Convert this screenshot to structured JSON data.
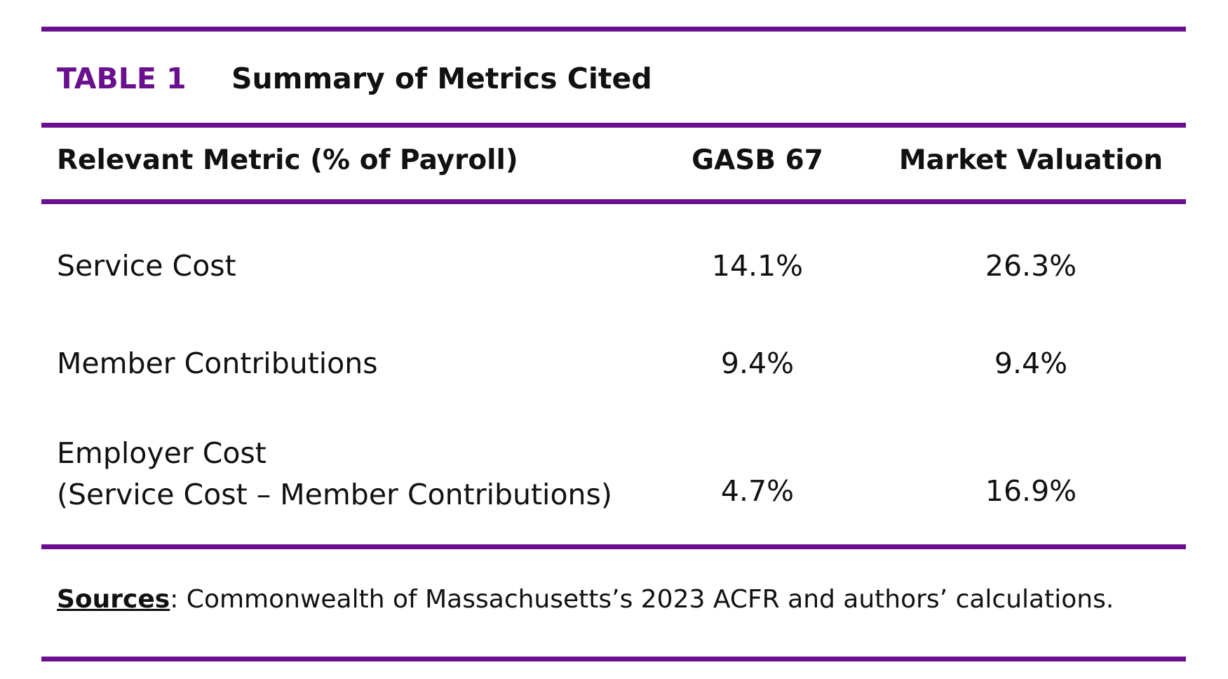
{
  "colors": {
    "accent": "#6a0f8e",
    "text": "#111111",
    "background": "#ffffff"
  },
  "title": {
    "label": "TABLE 1",
    "text": "Summary of Metrics Cited"
  },
  "table": {
    "headers": {
      "metric": "Relevant Metric (% of Payroll)",
      "gasb": "GASB 67",
      "market": "Market Valuation"
    },
    "rows": [
      {
        "metric": "Service Cost",
        "gasb": "14.1%",
        "market": "26.3%"
      },
      {
        "metric": "Member Contributions",
        "gasb": "9.4%",
        "market": "9.4%"
      },
      {
        "metric_line1": "Employer Cost",
        "metric_line2": "(Service Cost – Member Contributions)",
        "gasb": "4.7%",
        "market": "16.9%"
      }
    ]
  },
  "sources": {
    "label": "Sources",
    "text": ": Commonwealth of Massachusetts’s 2023 ACFR and authors’ calculations."
  }
}
